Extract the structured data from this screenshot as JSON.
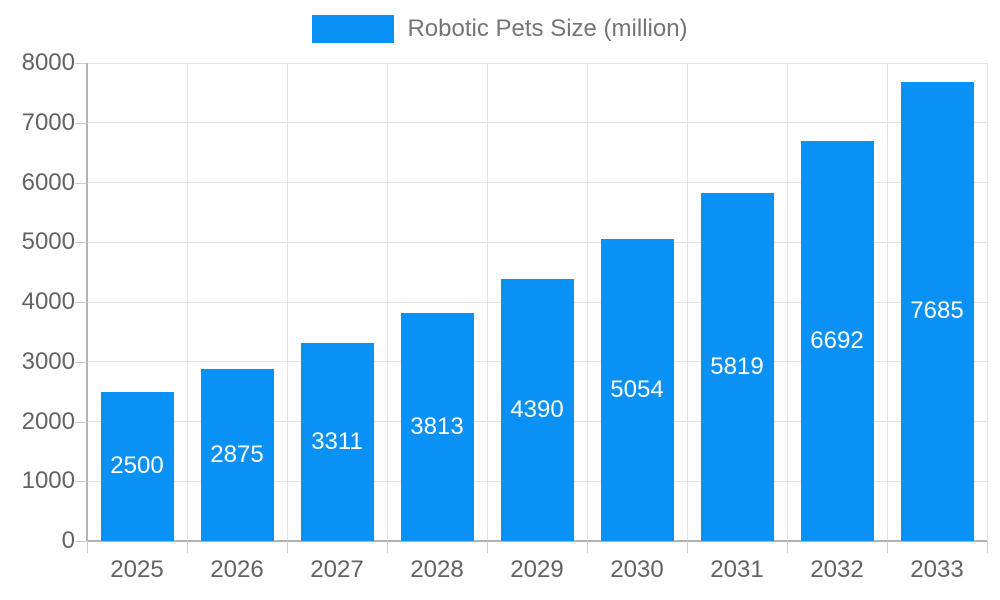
{
  "chart_data": {
    "type": "bar",
    "title": "Robotic Pets Size (million)",
    "series_name": "Robotic Pets Size (million)",
    "categories": [
      "2025",
      "2026",
      "2027",
      "2028",
      "2029",
      "2030",
      "2031",
      "2032",
      "2033"
    ],
    "values": [
      2500,
      2875,
      3311,
      3813,
      4390,
      5054,
      5819,
      6692,
      7685
    ],
    "bar_value_labels": [
      "2500",
      "2875",
      "3311",
      "3813",
      "4390",
      "5054",
      "5819",
      "6692",
      "7685"
    ],
    "xlabel": "",
    "ylabel": "",
    "ylim": [
      0,
      8000
    ],
    "ytick_step": 1000,
    "yticks": [
      0,
      1000,
      2000,
      3000,
      4000,
      5000,
      6000,
      7000,
      8000
    ],
    "ytick_labels": [
      "0",
      "1000",
      "2000",
      "3000",
      "4000",
      "5000",
      "6000",
      "7000",
      "8000"
    ],
    "grid": "horizontal and vertical gridlines on",
    "legend_position": "top-center",
    "value_label_position": "inside-middle",
    "colors": {
      "bar": "#0991f5",
      "bar_label": "#ffffff",
      "grid": "#e3e3e3",
      "axis": "#b3b3b3",
      "tick": "#cccccc",
      "tick_label": "#636363",
      "legend_text": "#757575",
      "background": "#ffffff"
    }
  }
}
